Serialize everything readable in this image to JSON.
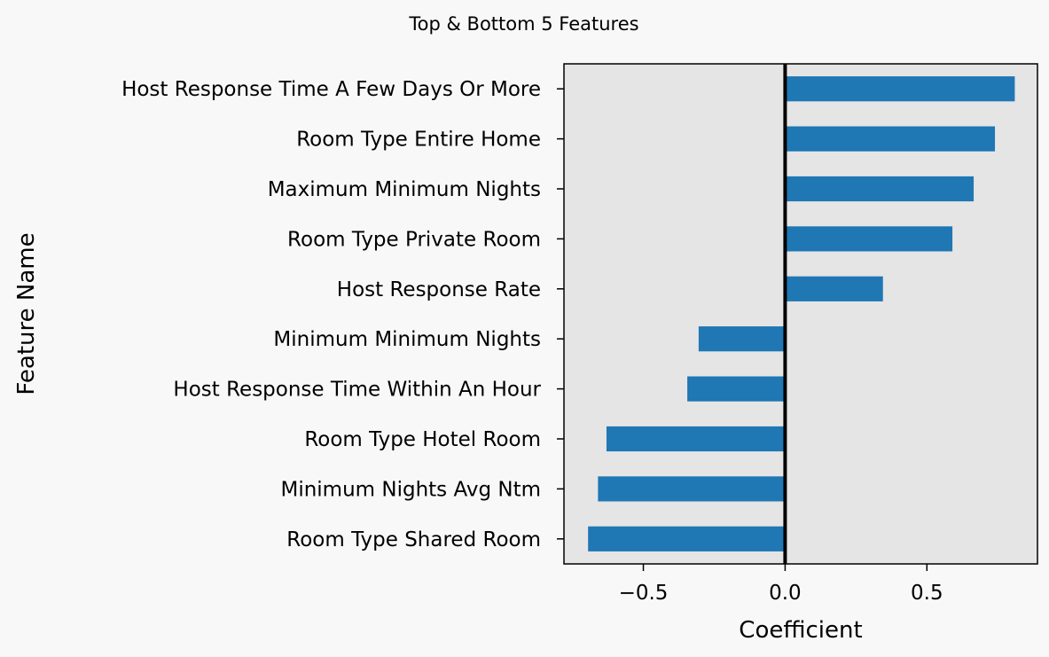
{
  "chart_data": {
    "type": "bar",
    "orientation": "horizontal",
    "title": "Top & Bottom 5 Features",
    "xlabel": "Coefficient",
    "ylabel": "Feature Name",
    "categories": [
      "Host Response Time A Few Days Or More",
      "Room Type Entire Home",
      "Maximum Minimum Nights",
      "Room Type Private Room",
      "Host Response Rate",
      "Minimum Minimum Nights",
      "Host Response Time Within An Hour",
      "Room Type Hotel Room",
      "Minimum Nights Avg Ntm",
      "Room Type Shared Room"
    ],
    "values": [
      0.81,
      0.74,
      0.665,
      0.59,
      0.345,
      -0.305,
      -0.345,
      -0.63,
      -0.66,
      -0.695
    ],
    "xlim": [
      -0.78,
      0.89
    ],
    "xticks": [
      -0.5,
      0.0,
      0.5
    ],
    "xtick_labels": [
      "−0.5",
      "0.0",
      "0.5"
    ],
    "zero_line": true,
    "grid": false,
    "colors": {
      "bar": "#1f77b4",
      "plot_background": "#e5e5e5",
      "figure_background": "#f8f8f8",
      "zero_line": "#000000"
    }
  }
}
